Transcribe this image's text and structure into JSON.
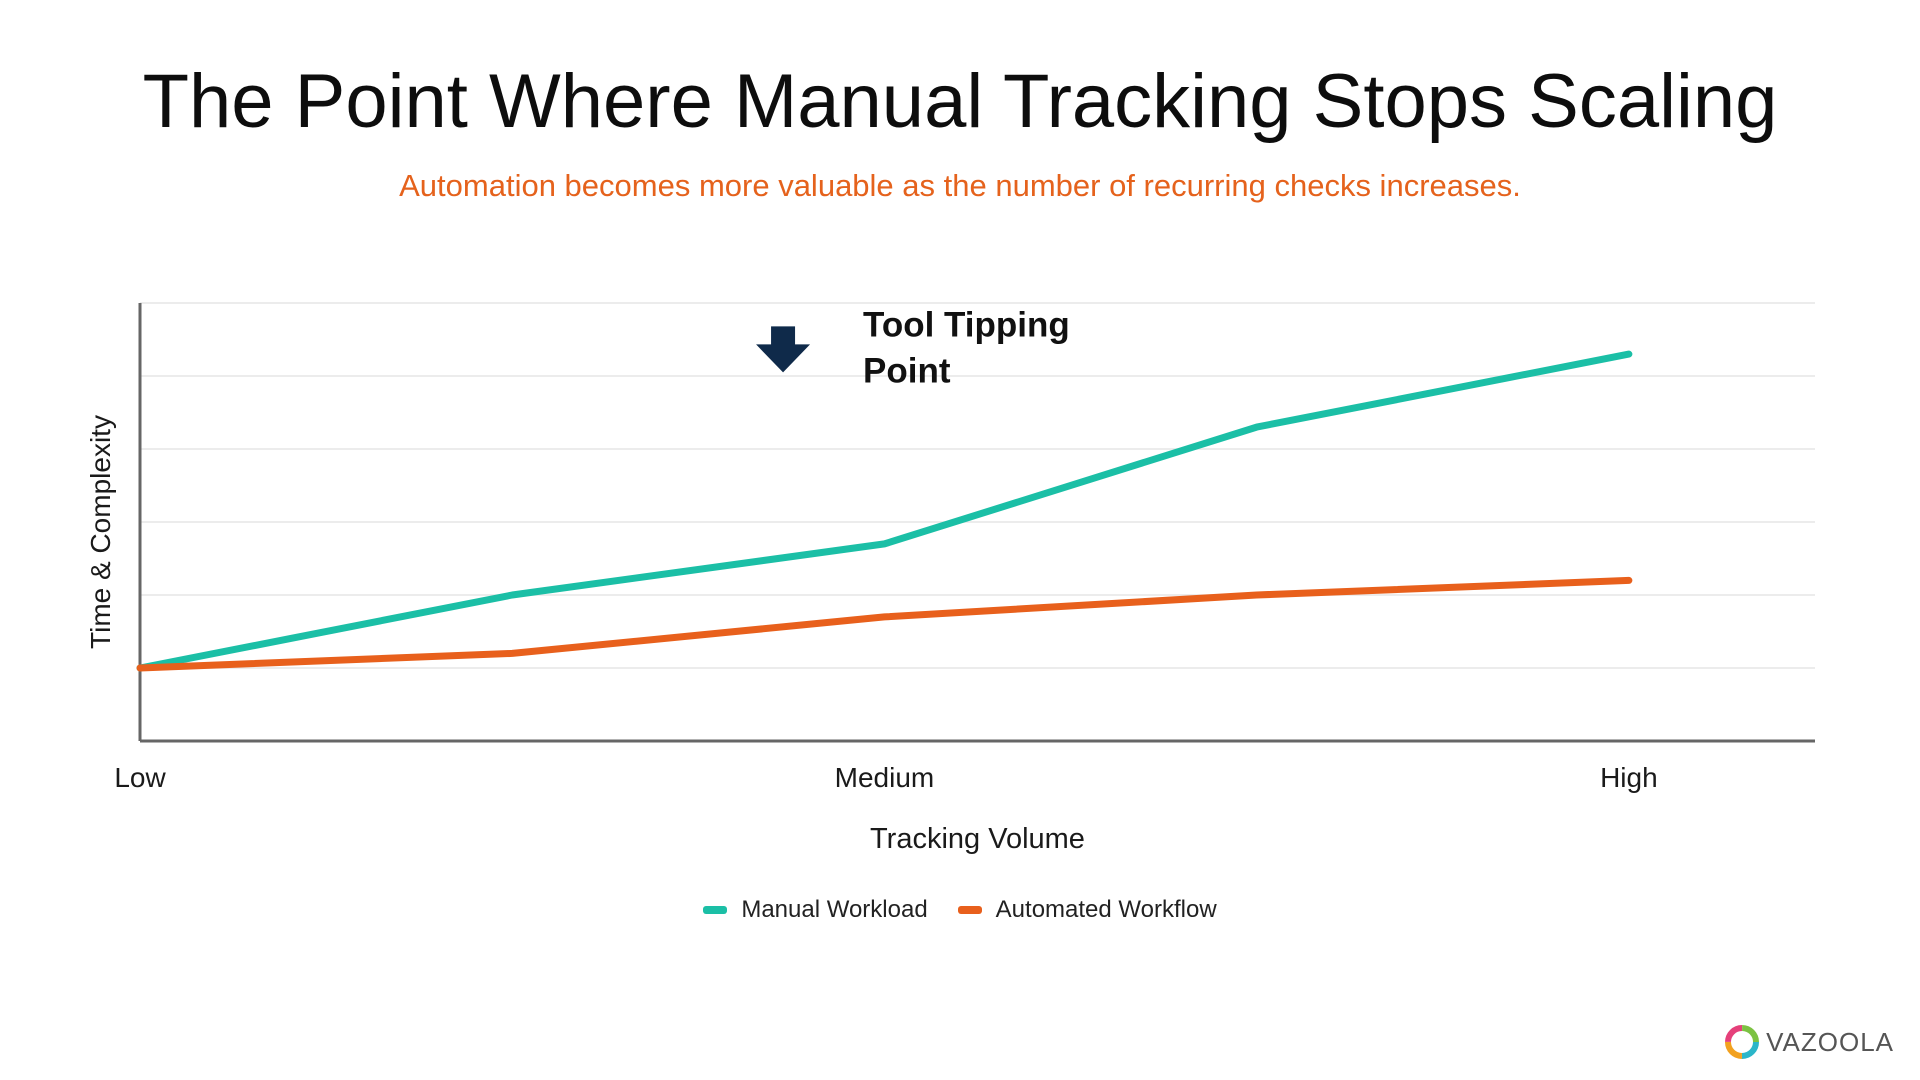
{
  "title": "The Point Where Manual Tracking Stops Scaling",
  "subtitle": "Automation becomes more valuable as the number of recurring checks increases.",
  "logo_text": "VAZOOLA",
  "chart_data": {
    "type": "line",
    "title": "The Point Where Manual Tracking Stops Scaling",
    "subtitle": "Automation becomes more valuable as the number of recurring checks increases.",
    "xlabel": "Tracking Volume",
    "ylabel": "Time & Complexity",
    "x": [
      0,
      1,
      2,
      3,
      4
    ],
    "x_tick_labels": [
      {
        "x": 0,
        "label": "Low"
      },
      {
        "x": 2,
        "label": "Medium"
      },
      {
        "x": 4,
        "label": "High"
      }
    ],
    "xlim": [
      0,
      4.5
    ],
    "ylim": [
      0,
      6
    ],
    "y_gridlines": [
      1,
      2,
      3,
      4,
      5,
      6
    ],
    "grid": true,
    "series": [
      {
        "name": "Manual Workload",
        "color": "#1bbfa6",
        "values": [
          1.0,
          2.0,
          2.7,
          4.3,
          5.3
        ]
      },
      {
        "name": "Automated Workflow",
        "color": "#e8601c",
        "values": [
          1.0,
          1.2,
          1.7,
          2.0,
          2.2
        ]
      }
    ],
    "annotation": {
      "lines": [
        "Tool Tipping",
        "Point"
      ],
      "x": 2.05,
      "y": 5.2,
      "icon": "down-arrow-icon",
      "icon_color": "#0f2a4a"
    },
    "legend_position": "bottom-center"
  }
}
